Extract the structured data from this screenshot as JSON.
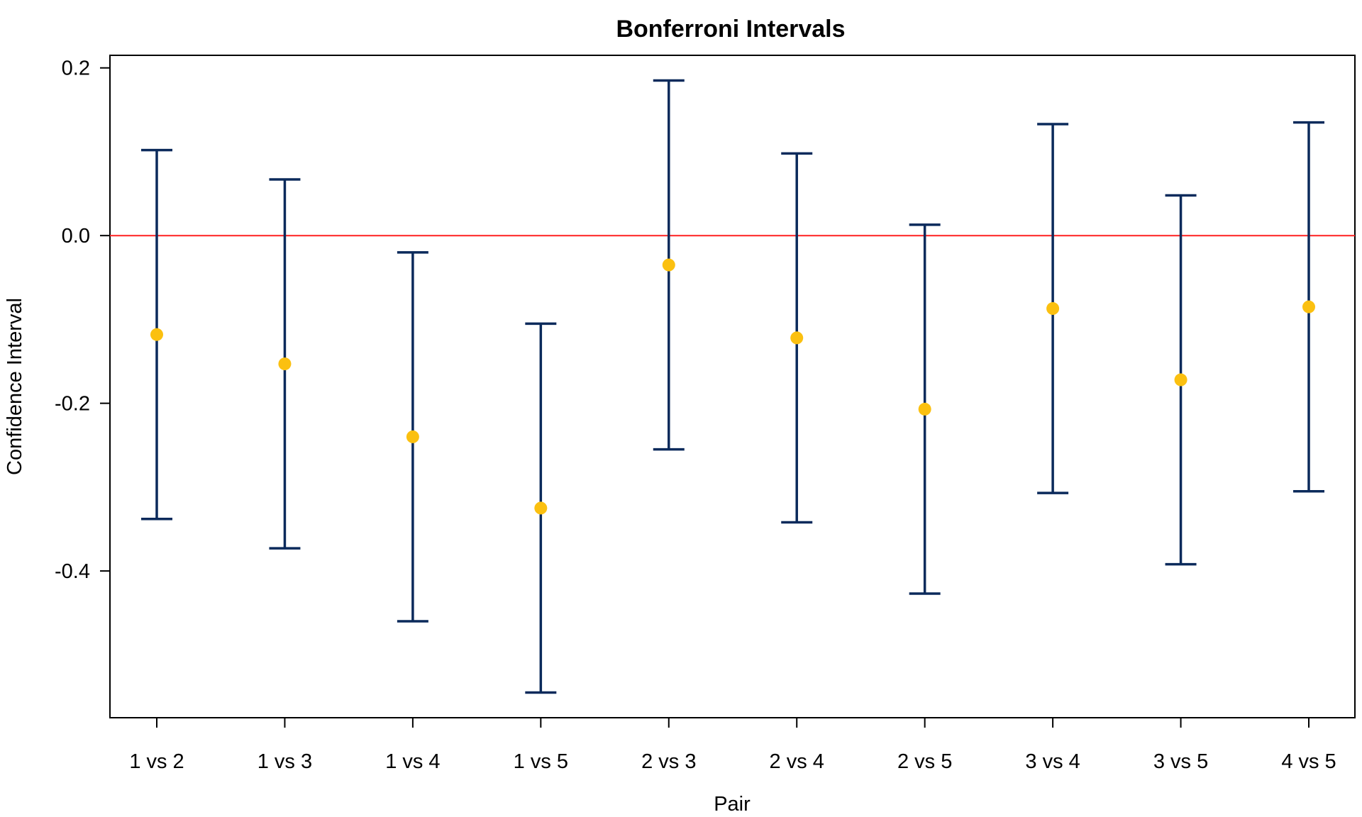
{
  "chart_data": {
    "type": "errorbar",
    "title": "Bonferroni Intervals",
    "xlabel": "Pair",
    "ylabel": "Confidence Interval",
    "categories": [
      "1 vs 2",
      "1 vs 3",
      "1 vs 4",
      "1 vs 5",
      "2 vs 3",
      "2 vs 4",
      "2 vs 5",
      "3 vs 4",
      "3 vs 5",
      "4 vs 5"
    ],
    "estimate": [
      -0.118,
      -0.153,
      -0.24,
      -0.325,
      -0.035,
      -0.122,
      -0.207,
      -0.087,
      -0.172,
      -0.085
    ],
    "lower": [
      -0.338,
      -0.373,
      -0.46,
      -0.545,
      -0.255,
      -0.342,
      -0.427,
      -0.307,
      -0.392,
      -0.305
    ],
    "upper": [
      0.102,
      0.067,
      -0.02,
      -0.105,
      0.185,
      0.098,
      0.013,
      0.133,
      0.048,
      0.135
    ],
    "yticks": [
      0.2,
      0.0,
      -0.2,
      -0.4
    ],
    "ytick_labels": [
      "0.2",
      "0.0",
      "-0.2",
      "-0.4"
    ],
    "ylim": [
      -0.575,
      0.215
    ],
    "reference_line": 0.0,
    "grid": false,
    "colors": {
      "interval": "#0b2a5b",
      "estimate": "#fbc010",
      "reference": "#ff2020"
    }
  }
}
